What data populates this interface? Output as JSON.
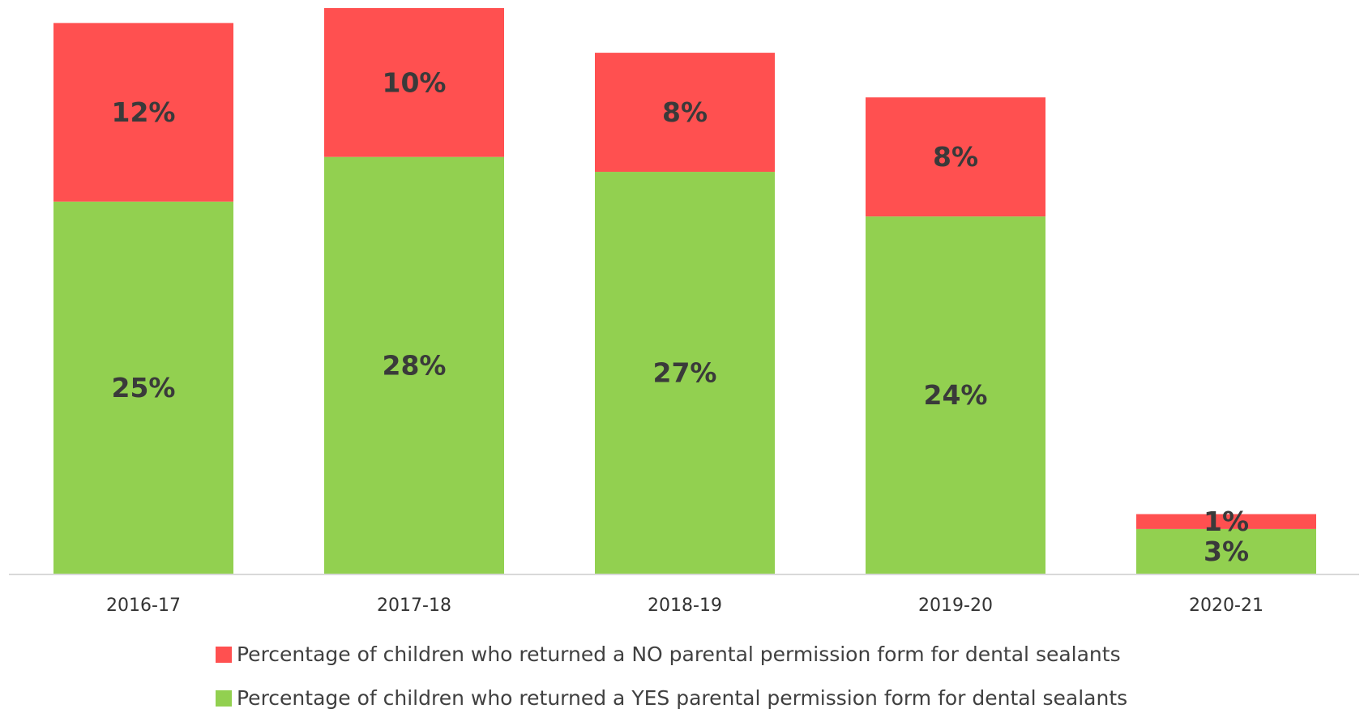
{
  "chart_data": {
    "type": "stacked_bar",
    "categories": [
      "2016-17",
      "2017-18",
      "2018-19",
      "2019-20",
      "2020-21"
    ],
    "series": [
      {
        "name": "Percentage of children who returned a YES parental permission form for dental sealants",
        "color": "#92d050",
        "values": [
          25,
          28,
          27,
          24,
          3
        ],
        "value_labels": [
          "25%",
          "28%",
          "27%",
          "24%",
          "3%"
        ]
      },
      {
        "name": "Percentage of children who returned a NO parental permission form for dental sealants",
        "color": "#ff5050",
        "values": [
          12,
          10,
          8,
          8,
          1
        ],
        "value_labels": [
          "12%",
          "10%",
          "8%",
          "8%",
          "1%"
        ]
      }
    ]
  }
}
